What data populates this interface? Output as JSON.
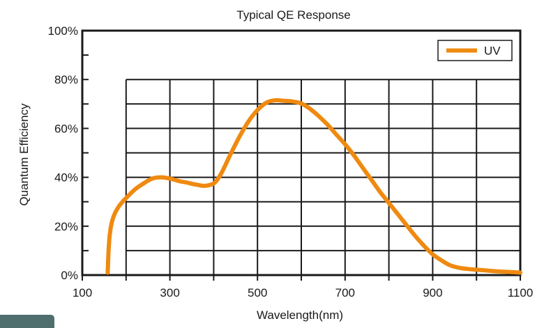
{
  "chart_data": {
    "type": "line",
    "title": "Typical QE Response",
    "xlabel": "Wavelength(nm)",
    "ylabel": "Quantum Efficiency",
    "xlim": [
      100,
      1100
    ],
    "ylim": [
      0,
      100
    ],
    "x_ticks": [
      100,
      300,
      500,
      700,
      900,
      1100
    ],
    "x_tick_labels": [
      "100",
      "300",
      "500",
      "700",
      "900",
      "1100"
    ],
    "y_ticks": [
      0,
      20,
      40,
      60,
      80,
      100
    ],
    "y_tick_labels": [
      "0%",
      "20%",
      "40%",
      "60%",
      "80%",
      "100%"
    ],
    "grid": true,
    "legend_position": "top-right",
    "series": [
      {
        "name": "UV",
        "color": "#ef8a10",
        "x": [
          158,
          160,
          163,
          168,
          175,
          185,
          200,
          220,
          240,
          260,
          280,
          300,
          320,
          340,
          360,
          380,
          400,
          410,
          420,
          440,
          460,
          480,
          500,
          520,
          540,
          560,
          580,
          600,
          620,
          640,
          660,
          680,
          700,
          720,
          740,
          760,
          780,
          800,
          820,
          840,
          860,
          880,
          900,
          920,
          940,
          960,
          980,
          1000,
          1020,
          1040,
          1060,
          1080,
          1100
        ],
        "y": [
          1,
          10,
          17,
          22,
          25.5,
          28.5,
          31.5,
          35,
          37.5,
          39.5,
          40,
          39.5,
          38.5,
          37.8,
          37,
          36.5,
          37.5,
          39.5,
          42.5,
          50,
          57,
          63,
          67.5,
          70.5,
          71.5,
          71.3,
          71,
          70.2,
          68,
          65,
          61.5,
          57.5,
          53.5,
          49,
          44,
          39,
          34,
          29.5,
          25,
          20.5,
          16,
          12,
          8.5,
          6,
          4,
          3,
          2.5,
          2.2,
          1.9,
          1.6,
          1.4,
          1.2,
          1
        ]
      }
    ]
  }
}
